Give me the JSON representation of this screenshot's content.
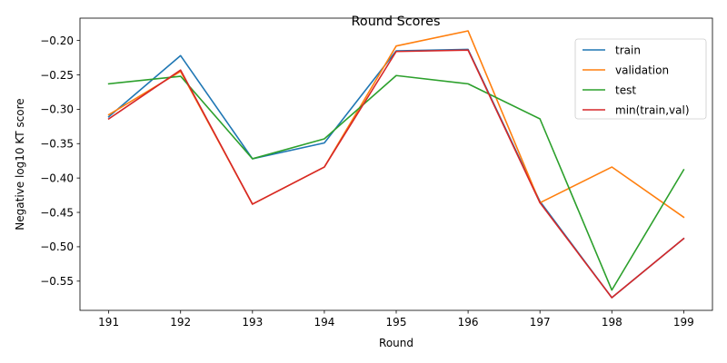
{
  "chart_data": {
    "type": "line",
    "title": "Round Scores",
    "xlabel": "Round",
    "ylabel": "Negative log10 KT score",
    "x": [
      191,
      192,
      193,
      194,
      195,
      196,
      197,
      198,
      199
    ],
    "xticks": [
      "191",
      "192",
      "193",
      "194",
      "195",
      "196",
      "197",
      "198",
      "199"
    ],
    "yticks": [
      -0.55,
      -0.5,
      -0.45,
      -0.4,
      -0.35,
      -0.3,
      -0.25,
      -0.2
    ],
    "ytick_labels": [
      "−0.55",
      "−0.50",
      "−0.45",
      "−0.40",
      "−0.35",
      "−0.30",
      "−0.25",
      "−0.20"
    ],
    "xlim": [
      190.6,
      199.4
    ],
    "ylim": [
      -0.5925,
      -0.1675
    ],
    "grid": false,
    "legend_position": "top-right",
    "series": [
      {
        "name": "train",
        "color": "#1f77b4",
        "values": [
          -0.311,
          -0.222,
          -0.372,
          -0.349,
          -0.215,
          -0.213,
          -0.434,
          -0.574,
          -0.488
        ]
      },
      {
        "name": "validation",
        "color": "#ff7f0e",
        "values": [
          -0.308,
          -0.245,
          -0.438,
          -0.384,
          -0.208,
          -0.186,
          -0.436,
          -0.384,
          -0.457
        ]
      },
      {
        "name": "test",
        "color": "#2ca02c",
        "values": [
          -0.263,
          -0.252,
          -0.372,
          -0.343,
          -0.251,
          -0.263,
          -0.314,
          -0.563,
          -0.388
        ]
      },
      {
        "name": "min(train,val)",
        "color": "#d62728",
        "values": [
          -0.314,
          -0.243,
          -0.438,
          -0.384,
          -0.216,
          -0.214,
          -0.436,
          -0.574,
          -0.488
        ]
      }
    ]
  }
}
